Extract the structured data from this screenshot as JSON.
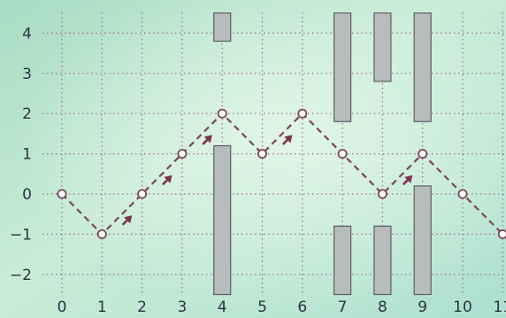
{
  "chart_data": {
    "type": "line",
    "title": "",
    "xlabel": "",
    "ylabel": "",
    "x": [
      0,
      1,
      2,
      3,
      4,
      5,
      6,
      7,
      8,
      9,
      10,
      11
    ],
    "series": [
      {
        "values": [
          0,
          -1,
          0,
          1,
          2,
          1,
          2,
          1,
          0,
          1,
          0,
          -1
        ]
      }
    ],
    "xlim": [
      0,
      11
    ],
    "ylim": [
      -2,
      4
    ],
    "x_ticks": [
      "0",
      "1",
      "2",
      "3",
      "4",
      "5",
      "6",
      "7",
      "8",
      "9",
      "10",
      "11"
    ],
    "y_ticks": [
      "-2",
      "-1",
      "0",
      "1",
      "2",
      "3",
      "4"
    ],
    "grid": true,
    "obstacles": [
      {
        "x": 4,
        "from": 3.8,
        "to": 4.5
      },
      {
        "x": 4,
        "from": -2.5,
        "to": 1.2
      },
      {
        "x": 7,
        "from": 1.8,
        "to": 4.5
      },
      {
        "x": 7,
        "from": -2.5,
        "to": -0.8
      },
      {
        "x": 8,
        "from": 2.8,
        "to": 4.5
      },
      {
        "x": 8,
        "from": -2.5,
        "to": -0.8
      },
      {
        "x": 9,
        "from": 1.8,
        "to": 4.5
      },
      {
        "x": 9,
        "from": -2.5,
        "to": 0.2
      }
    ],
    "arrows": [
      {
        "from": [
          1,
          -1
        ],
        "to": [
          2,
          0
        ]
      },
      {
        "from": [
          2,
          0
        ],
        "to": [
          3,
          1
        ]
      },
      {
        "from": [
          3,
          1
        ],
        "to": [
          4,
          2
        ]
      },
      {
        "from": [
          5,
          1
        ],
        "to": [
          6,
          2
        ]
      },
      {
        "from": [
          8,
          0
        ],
        "to": [
          9,
          1
        ]
      }
    ],
    "colors": {
      "line": "#7a4658",
      "arrow": "#7a3350",
      "grid": "#9c6e98",
      "obstacle_fill": "#b9bcbd",
      "obstacle_stroke": "#5b5f62",
      "marker_fill": "#ffffff",
      "marker_stroke": "#7a4658"
    }
  }
}
